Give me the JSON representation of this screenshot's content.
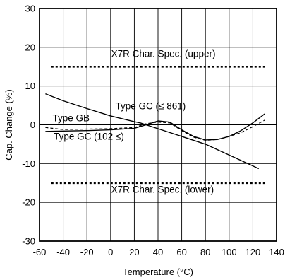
{
  "chart_data": {
    "type": "line",
    "xlabel": "Temperature (°C)",
    "ylabel": "Cap. Change (%)",
    "xlim": [
      -60,
      140
    ],
    "ylim": [
      -30,
      30
    ],
    "x_ticks": [
      -60,
      -40,
      -20,
      0,
      20,
      40,
      60,
      80,
      100,
      120,
      140
    ],
    "y_ticks": [
      -30,
      -20,
      -10,
      0,
      10,
      20,
      30
    ],
    "grid": true,
    "legend": "none",
    "series": [
      {
        "name": "Type GC (≤ 861)",
        "style": "solid",
        "x": [
          -55,
          -40,
          -20,
          0,
          20,
          25,
          40,
          60,
          80,
          100,
          125
        ],
        "y": [
          8.0,
          6.2,
          4.2,
          2.3,
          0.8,
          0.5,
          -1.0,
          -3.0,
          -5.0,
          -7.8,
          -11.3
        ]
      },
      {
        "name": "Type GB",
        "style": "dashed",
        "x": [
          -55,
          -40,
          -20,
          0,
          20,
          30,
          40,
          50,
          60,
          70,
          80,
          90,
          100,
          110,
          120,
          130
        ],
        "y": [
          -0.7,
          -1.2,
          -1.1,
          -1.0,
          -0.7,
          0.3,
          0.7,
          0.5,
          -1.5,
          -3.2,
          -4.0,
          -3.8,
          -3.0,
          -2.0,
          -0.5,
          1.2
        ]
      },
      {
        "name": "Type GC (102 ≤)",
        "style": "solid",
        "x": [
          -55,
          -40,
          -20,
          0,
          20,
          30,
          40,
          50,
          60,
          70,
          80,
          90,
          100,
          110,
          120,
          130
        ],
        "y": [
          -1.7,
          -1.6,
          -1.5,
          -1.3,
          -0.9,
          0.0,
          1.0,
          0.7,
          -1.3,
          -3.0,
          -3.9,
          -3.8,
          -3.0,
          -1.5,
          0.5,
          2.8
        ]
      },
      {
        "name": "X7R Char. Spec. (upper)",
        "style": "dotted",
        "x": [
          -50,
          130
        ],
        "y": [
          15,
          15
        ]
      },
      {
        "name": "X7R Char. Spec. (lower)",
        "style": "dotted",
        "x": [
          -50,
          130
        ],
        "y": [
          -15,
          -15
        ]
      }
    ],
    "annotations": [
      {
        "text": "X7R Char. Spec. (upper)",
        "x": 0.5,
        "y": 17.5
      },
      {
        "text": "Type GC (≤ 861)",
        "x": 4,
        "y": 4
      },
      {
        "text": "Type GB",
        "x": -49,
        "y": 0.9
      },
      {
        "text": "Type GC (102 ≤)",
        "x": -48,
        "y": -3.8
      },
      {
        "text": "X7R Char. Spec. (lower)",
        "x": 0.5,
        "y": -17.5
      }
    ]
  }
}
